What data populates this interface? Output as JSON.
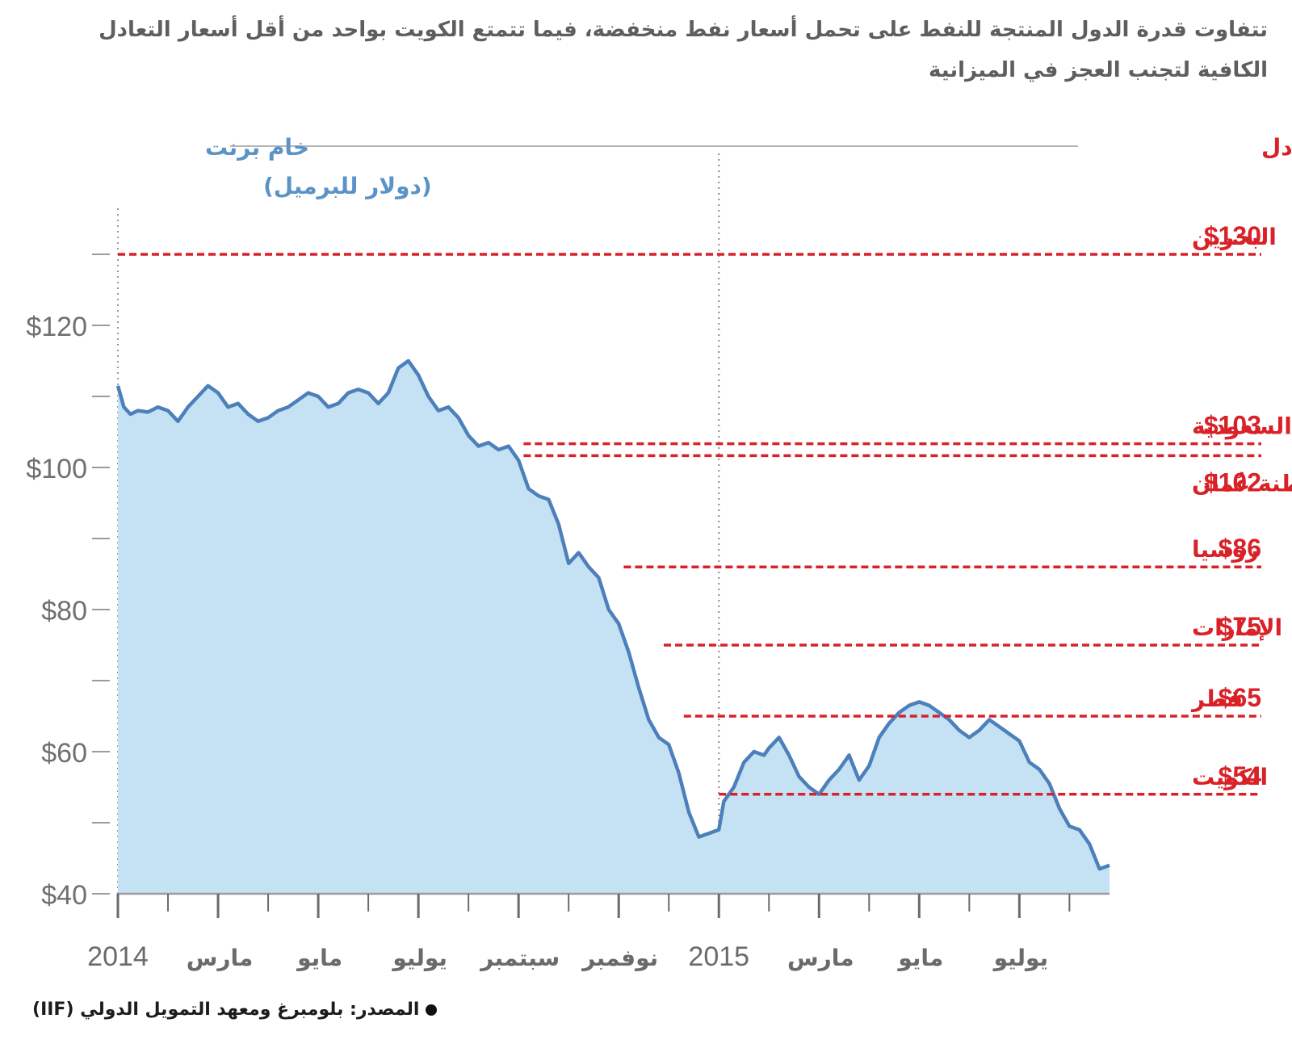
{
  "chart_data": {
    "type": "line",
    "title": "تتفاوت قدرة الدول المنتجة للنفط على تحمل أسعار نفط منخفضة، فيما تتمتع الكويت بواحد من أقل أسعار التعادل الكافية لتجنب العجز في الميزانية",
    "series_label": "خام برنت",
    "unit_label": "(دولار للبرميل)",
    "breakeven_header": "أسعار التعـادل",
    "source": "المصدر: بلومبرغ ومعهد التمويل الدولي (IIF)",
    "ylim": [
      40,
      130
    ],
    "y_ticks": [
      "$40",
      "$60",
      "$80",
      "$100",
      "$120"
    ],
    "y_tick_values": [
      40,
      60,
      80,
      100,
      120
    ],
    "x_ticks": [
      "2014",
      "مارس",
      "مايو",
      "يوليو",
      "سبتمبر",
      "نوفمبر",
      "2015",
      "مارس",
      "مايو",
      "يوليو"
    ],
    "x_tick_months": [
      0,
      2,
      4,
      6,
      8,
      10,
      12,
      14,
      16,
      18
    ],
    "xlim_months": [
      0,
      19.8
    ],
    "area_fill": "#c4e2f3",
    "line_color": "#4d80bb",
    "breakeven_color": "#d92128",
    "series": [
      {
        "name": "خام برنت",
        "x_months": [
          0,
          0.12,
          0.25,
          0.4,
          0.6,
          0.8,
          1.0,
          1.2,
          1.4,
          1.6,
          1.8,
          2.0,
          2.2,
          2.4,
          2.6,
          2.8,
          3.0,
          3.2,
          3.4,
          3.6,
          3.8,
          4.0,
          4.2,
          4.4,
          4.6,
          4.8,
          5.0,
          5.2,
          5.4,
          5.6,
          5.8,
          6.0,
          6.2,
          6.4,
          6.6,
          6.8,
          7.0,
          7.2,
          7.4,
          7.6,
          7.8,
          8.0,
          8.2,
          8.4,
          8.6,
          8.8,
          9.0,
          9.2,
          9.4,
          9.6,
          9.8,
          10.0,
          10.2,
          10.4,
          10.6,
          10.8,
          11.0,
          11.2,
          11.4,
          11.6,
          11.8,
          12.0,
          12.1,
          12.3,
          12.5,
          12.7,
          12.9,
          13.0,
          13.2,
          13.4,
          13.6,
          13.8,
          14.0,
          14.2,
          14.4,
          14.6,
          14.8,
          15.0,
          15.2,
          15.4,
          15.6,
          15.8,
          16.0,
          16.2,
          16.4,
          16.6,
          16.8,
          17.0,
          17.2,
          17.4,
          17.6,
          17.8,
          18.0,
          18.2,
          18.4,
          18.6,
          18.8,
          19.0,
          19.2,
          19.4,
          19.6,
          19.8
        ],
        "values": [
          111.5,
          108.5,
          107.5,
          108.0,
          107.8,
          108.5,
          108.0,
          106.5,
          108.5,
          110.0,
          111.5,
          110.5,
          108.5,
          109.0,
          107.5,
          106.5,
          107.0,
          108.0,
          108.5,
          109.5,
          110.5,
          110.0,
          108.5,
          109.0,
          110.5,
          111.0,
          110.5,
          109.0,
          110.5,
          114.0,
          115.0,
          113.0,
          110.0,
          108.0,
          108.5,
          107.0,
          104.5,
          103.0,
          103.5,
          102.5,
          103.0,
          101.0,
          97.0,
          96.0,
          95.5,
          92.0,
          86.5,
          88.0,
          86.0,
          84.5,
          80.0,
          78.0,
          74.0,
          69.0,
          64.5,
          62.0,
          61.0,
          57.0,
          51.5,
          48.0,
          48.5,
          49.0,
          53.0,
          55.0,
          58.5,
          60.0,
          59.5,
          60.5,
          62.0,
          59.5,
          56.5,
          55.0,
          54.0,
          56.0,
          57.5,
          59.5,
          56.0,
          58.0,
          62.0,
          64.0,
          65.5,
          66.5,
          67.0,
          66.5,
          65.5,
          64.5,
          63.0,
          62.0,
          63.0,
          64.5,
          63.5,
          62.5,
          61.5,
          58.5,
          57.5,
          55.5,
          52.0,
          49.5,
          49.0,
          47.0,
          43.5,
          44.0
        ]
      }
    ],
    "breakevens": [
      {
        "value": 130,
        "label": "$130",
        "country": "البحرين",
        "start_month": 0
      },
      {
        "value": 103,
        "label": "$103",
        "country": "السعودية",
        "start_month": 8.1
      },
      {
        "value": 102,
        "label": "$102",
        "country": "سلطنة عُمان",
        "start_month": 8.1
      },
      {
        "value": 86,
        "label": "$86",
        "country": "روسيا",
        "start_month": 10.1
      },
      {
        "value": 75,
        "label": "$75",
        "country": "الإمارات",
        "start_month": 10.9
      },
      {
        "value": 65,
        "label": "$65",
        "country": "قطر",
        "start_month": 11.3
      },
      {
        "value": 54,
        "label": "$54",
        "country": "الكويت",
        "start_month": 12.0
      }
    ]
  }
}
